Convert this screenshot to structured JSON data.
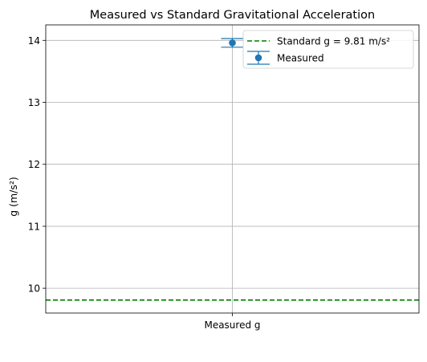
{
  "chart_data": {
    "type": "errorbar",
    "title": "Measured vs Standard Gravitational Acceleration",
    "xlabel": "",
    "ylabel": "g (m/s²)",
    "categories": [
      "Measured g"
    ],
    "ylim": [
      9.6,
      14.25
    ],
    "yticks": [
      10,
      11,
      12,
      13,
      14
    ],
    "grid": true,
    "series": [
      {
        "name": "Measured",
        "kind": "errorbar",
        "values": [
          13.96
        ],
        "yerr": [
          0.07
        ],
        "color": "#1f77b4"
      }
    ],
    "reference_lines": [
      {
        "name": "Standard g = 9.81 m/s²",
        "value": 9.81,
        "style": "dashed",
        "color": "#008000"
      }
    ],
    "legend": {
      "placement": "top-right",
      "entries": [
        "Standard g = 9.81 m/s²",
        "Measured"
      ]
    }
  }
}
